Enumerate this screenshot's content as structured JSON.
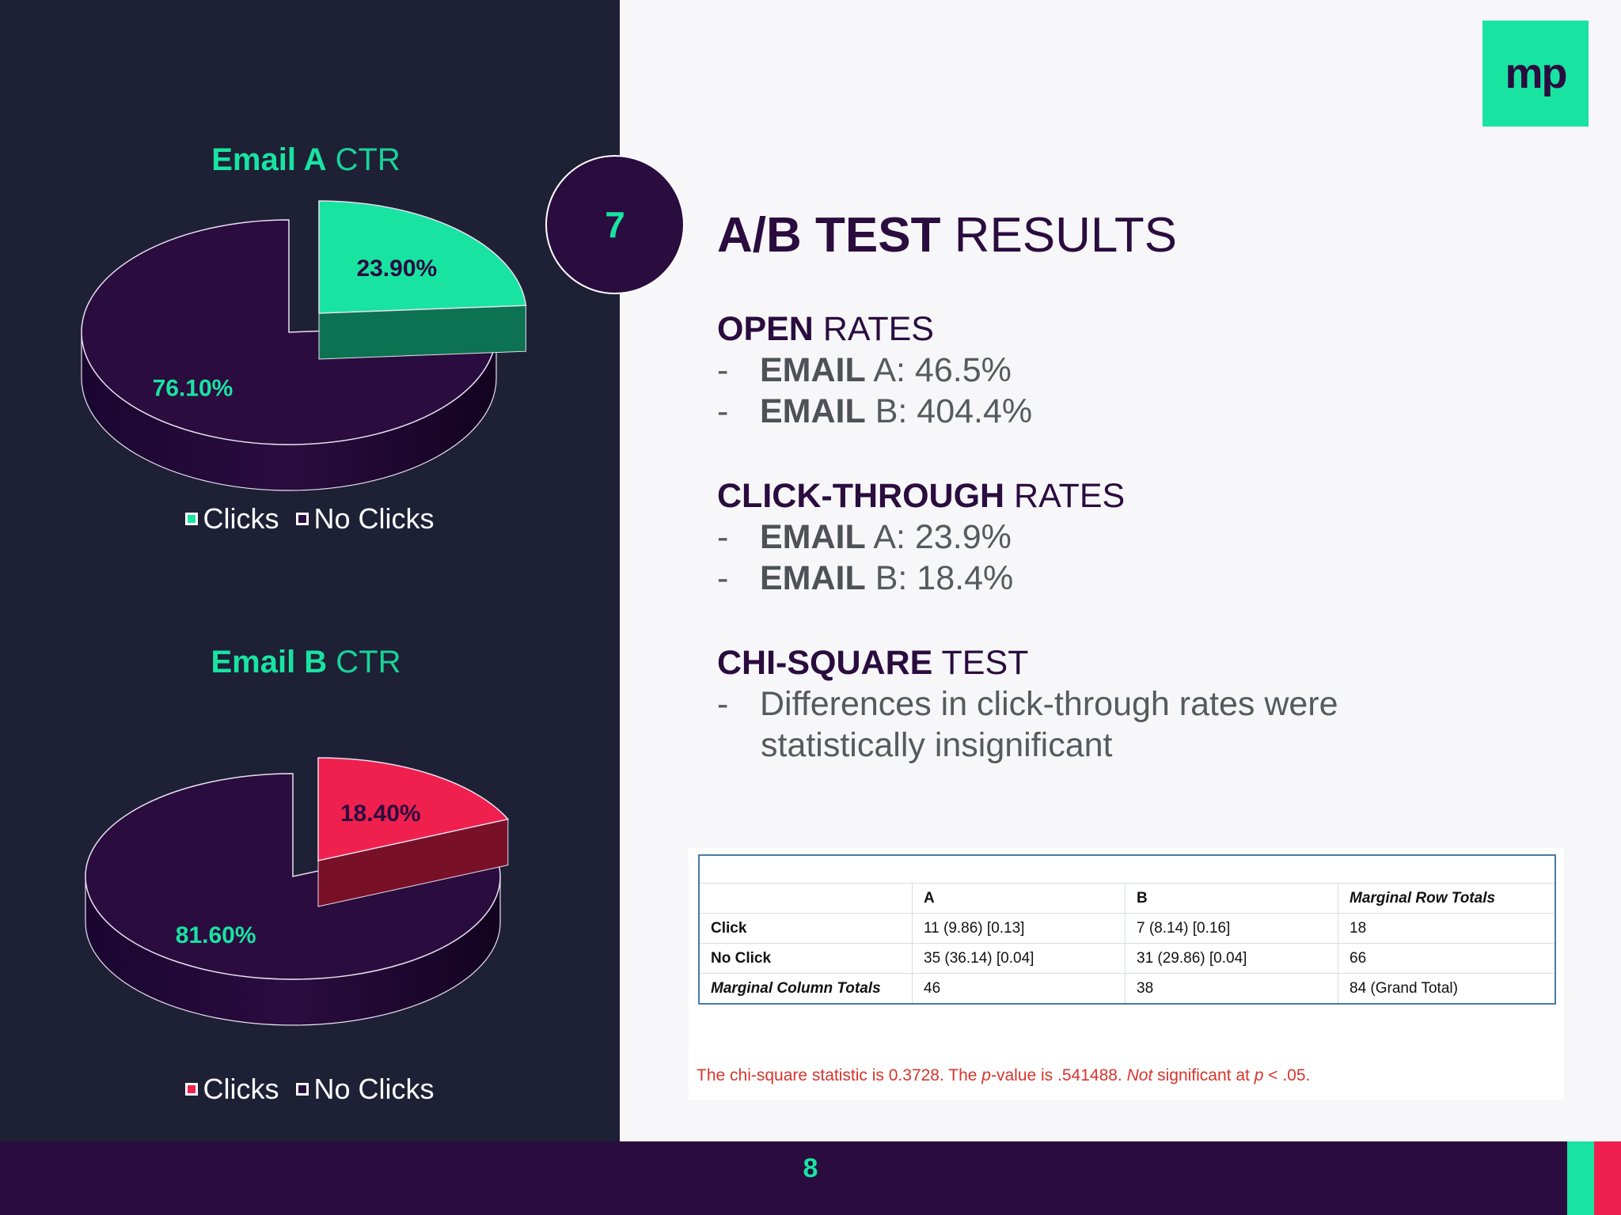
{
  "colors": {
    "left_bg": "#1e2036",
    "right_bg": "#f7f7f9",
    "dark_purple": "#2b0c3f",
    "green": "#19e3a1",
    "red": "#f0204e",
    "note_red": "#d9342b"
  },
  "badge": {
    "number": "7"
  },
  "logo": {
    "text": "mp"
  },
  "title": {
    "bold": "A/B TEST",
    "light": " RESULTS"
  },
  "open_rates": {
    "head_bold": "OPEN",
    "head_light": " RATES",
    "items": [
      {
        "dash": "-",
        "bold": "EMAIL",
        "text": " A: 46.5%"
      },
      {
        "dash": "-",
        "bold": "EMAIL",
        "text": " B: 404.4%"
      }
    ]
  },
  "ctr_rates": {
    "head_bold": "CLICK-THROUGH",
    "head_light": " RATES",
    "items": [
      {
        "dash": "-",
        "bold": "EMAIL",
        "text": " A: 23.9%"
      },
      {
        "dash": "-",
        "bold": "EMAIL",
        "text": " B: 18.4%"
      }
    ]
  },
  "chi_square": {
    "head_bold": "CHI-SQUARE",
    "head_light": " TEST",
    "dash": "-",
    "line1": "Differences in click-through rates were",
    "line2": "statistically insignificant"
  },
  "table": {
    "header": [
      "",
      "A",
      "B",
      "Marginal Row Totals"
    ],
    "rows": [
      [
        "Click",
        "11   (9.86)   [0.13]",
        "7   (8.14)   [0.16]",
        "18"
      ],
      [
        "No Click",
        "35   (36.14)   [0.04]",
        "31   (29.86)   [0.04]",
        "66"
      ],
      [
        "Marginal Column Totals",
        "46",
        "38",
        "84    (Grand Total)"
      ]
    ],
    "note_1": "The chi-square statistic is 0.3728. The ",
    "note_p": "p",
    "note_2": "-value is .541488. ",
    "note_not": "Not",
    "note_3": " significant at ",
    "note_p2": "p",
    "note_4": " < .05."
  },
  "footer": {
    "page": "8"
  },
  "chart_data": [
    {
      "type": "pie",
      "title_bold": "Email A",
      "title_light": " CTR",
      "slices": [
        {
          "name": "Clicks",
          "value": 23.9,
          "label": "23.90%",
          "color": "#19e3a1"
        },
        {
          "name": "No Clicks",
          "value": 76.1,
          "label": "76.10%",
          "color": "#2b0c3f"
        }
      ],
      "legend": [
        "Clicks",
        "No Clicks"
      ],
      "legend_placement": "bottom",
      "exploded": "Clicks"
    },
    {
      "type": "pie",
      "title_bold": "Email B",
      "title_light": " CTR",
      "slices": [
        {
          "name": "Clicks",
          "value": 18.4,
          "label": "18.40%",
          "color": "#f0204e"
        },
        {
          "name": "No Clicks",
          "value": 81.6,
          "label": "81.60%",
          "color": "#2b0c3f"
        }
      ],
      "legend": [
        "Clicks",
        "No Clicks"
      ],
      "legend_placement": "bottom",
      "exploded": "Clicks"
    }
  ]
}
